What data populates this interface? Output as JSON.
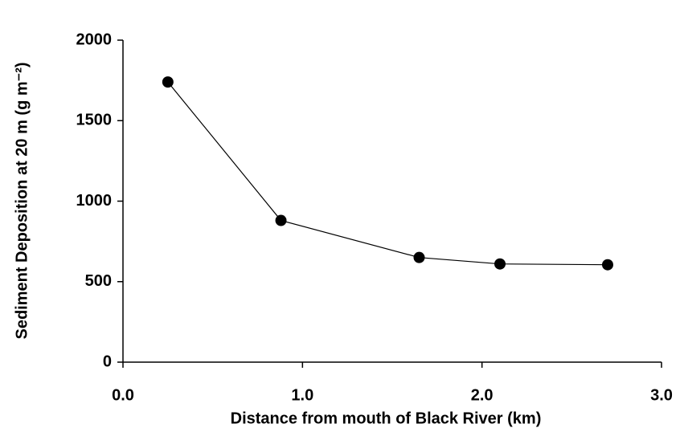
{
  "chart_data": {
    "type": "line",
    "x_label": "Distance from mouth of Black River (km)",
    "y_label": "Sediment Deposition at 20 m (g m⁻²)",
    "x": [
      0.25,
      0.88,
      1.65,
      2.1,
      2.7
    ],
    "series": [
      {
        "name": "Sediment deposition",
        "color": "#000000",
        "values": [
          1740,
          880,
          650,
          610,
          605
        ]
      }
    ],
    "xlim": [
      0,
      3
    ],
    "xticks": [
      {
        "value": 0,
        "label": "0.0"
      },
      {
        "value": 1,
        "label": "1.0"
      },
      {
        "value": 2,
        "label": "2.0"
      },
      {
        "value": 3,
        "label": "3.0"
      }
    ],
    "ylim": [
      0,
      2000
    ],
    "yticks": [
      0,
      500,
      1000,
      1500,
      2000
    ],
    "grid": false
  }
}
